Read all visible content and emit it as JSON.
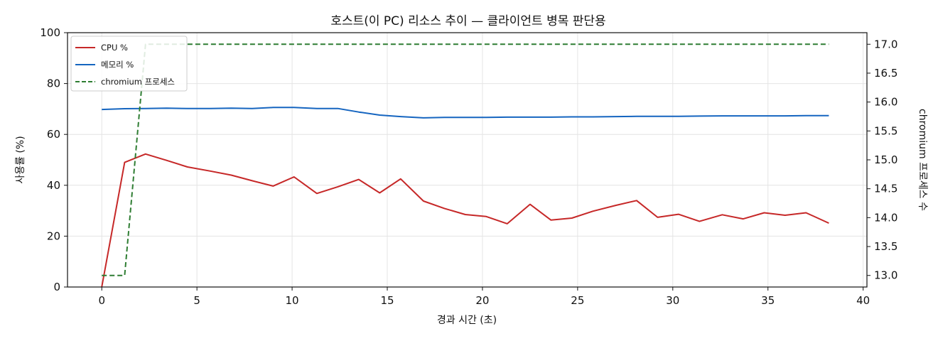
{
  "chart_data": {
    "type": "line",
    "title": "호스트(이 PC) 리소스 추이 — 클라이언트 병목 판단용",
    "xlabel": "경과 시간 (초)",
    "ylabel": "사용률 (%)",
    "y2label": "chromium 프로세스 수",
    "xlim": [
      -1.8,
      40.2
    ],
    "ylim": [
      0,
      100
    ],
    "y2lim": [
      12.8,
      17.2
    ],
    "xticks": [
      0,
      5,
      10,
      15,
      20,
      25,
      30,
      35,
      40
    ],
    "yticks": [
      0,
      20,
      40,
      60,
      80,
      100
    ],
    "y2ticks": [
      13.0,
      13.5,
      14.0,
      14.5,
      15.0,
      15.5,
      16.0,
      16.5,
      17.0
    ],
    "xtick_labels": [
      "0",
      "5",
      "10",
      "15",
      "20",
      "25",
      "30",
      "35",
      "40"
    ],
    "ytick_labels": [
      "0",
      "20",
      "40",
      "60",
      "80",
      "100"
    ],
    "y2tick_labels": [
      "13.0",
      "13.5",
      "14.0",
      "14.5",
      "15.0",
      "15.5",
      "16.0",
      "16.5",
      "17.0"
    ],
    "grid": true,
    "legend_position": "top-left",
    "x": [
      0.0,
      1.2,
      2.3,
      3.4,
      4.5,
      5.7,
      6.8,
      7.9,
      9.0,
      10.1,
      11.3,
      12.4,
      13.5,
      14.6,
      15.7,
      16.9,
      18.0,
      19.1,
      20.2,
      21.3,
      22.5,
      23.6,
      24.7,
      25.8,
      27.0,
      28.1,
      29.2,
      30.3,
      31.4,
      32.6,
      33.7,
      34.8,
      35.9,
      37.0,
      38.2
    ],
    "series": [
      {
        "name": "CPU %",
        "axis": "left",
        "color": "#c62828",
        "style": "solid",
        "values": [
          0,
          49,
          52.3,
          49.8,
          47.2,
          45.6,
          44.0,
          41.8,
          39.7,
          43.3,
          36.8,
          39.4,
          42.3,
          37.0,
          42.5,
          33.8,
          30.9,
          28.5,
          27.7,
          24.9,
          32.5,
          26.3,
          27.1,
          29.8,
          32.1,
          34.0,
          27.4,
          28.6,
          25.8,
          28.4,
          26.8,
          29.2,
          28.2,
          29.2,
          25.1
        ]
      },
      {
        "name": "메모리 %",
        "axis": "left",
        "color": "#1565c0",
        "style": "solid",
        "values": [
          69.8,
          70.1,
          70.2,
          70.3,
          70.2,
          70.2,
          70.3,
          70.2,
          70.6,
          70.6,
          70.2,
          70.2,
          68.8,
          67.6,
          67.0,
          66.5,
          66.7,
          66.7,
          66.7,
          66.8,
          66.8,
          66.8,
          66.9,
          66.9,
          67.0,
          67.1,
          67.1,
          67.1,
          67.2,
          67.3,
          67.3,
          67.3,
          67.3,
          67.4,
          67.4
        ]
      },
      {
        "name": "chromium 프로세스",
        "axis": "right",
        "color": "#2e7d32",
        "style": "dashed",
        "values": [
          13,
          13,
          17,
          17,
          17,
          17,
          17,
          17,
          17,
          17,
          17,
          17,
          17,
          17,
          17,
          17,
          17,
          17,
          17,
          17,
          17,
          17,
          17,
          17,
          17,
          17,
          17,
          17,
          17,
          17,
          17,
          17,
          17,
          17,
          17
        ]
      }
    ]
  }
}
